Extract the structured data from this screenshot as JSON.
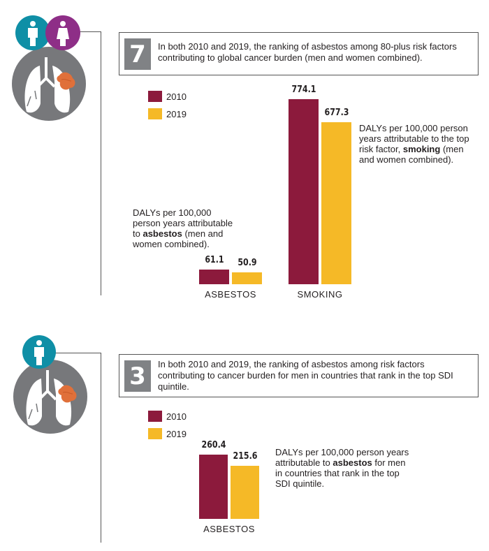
{
  "colors": {
    "y2010": "#8c1a3c",
    "y2019": "#f5b927",
    "rank_box": "#808285",
    "teal": "#0f8fa6",
    "purple": "#8e2e87",
    "lung_circle": "#77787b",
    "tumor": "#e0703a"
  },
  "icons": {
    "top": [
      "man-icon",
      "woman-icon",
      "lungs-icon"
    ],
    "bottom": [
      "man-icon",
      "lungs-icon"
    ]
  },
  "panel1": {
    "rank": "7",
    "callout": "In both 2010 and 2019, the ranking of asbestos among 80-plus risk factors contributing to global cancer burden (men and women combined).",
    "legend": [
      "2010",
      "2019"
    ],
    "note_asbestos": {
      "pre": "DALYs per 100,000 person years attributable to ",
      "bold": "asbestos",
      "post": " (men and women combined)."
    },
    "note_smoking": {
      "pre": "DALYs per 100,000 person years attributable to the top risk factor, ",
      "bold": "smoking",
      "post": " (men and women combined)."
    }
  },
  "panel2": {
    "rank": "3",
    "callout": "In both 2010 and 2019, the ranking of asbestos among risk factors contributing to cancer burden for men in countries that rank in the top SDI quintile.",
    "legend": [
      "2010",
      "2019"
    ],
    "note_asbestos": {
      "pre": "DALYs per 100,000 person years attributable to ",
      "bold": "asbestos",
      "post": " for men in countries that rank in the top SDI quintile."
    }
  },
  "chart_data": [
    {
      "type": "bar",
      "title": "DALYs per 100,000 person years (men and women combined)",
      "categories": [
        "ASBESTOS",
        "SMOKING"
      ],
      "series": [
        {
          "name": "2010",
          "values": [
            61.1,
            774.1
          ],
          "labels": [
            "61.1",
            "774.1"
          ]
        },
        {
          "name": "2019",
          "values": [
            50.9,
            677.3
          ],
          "labels": [
            "50.9",
            "677.3"
          ]
        }
      ],
      "xlabel": "",
      "ylabel": "",
      "ylim": [
        0,
        774.1
      ]
    },
    {
      "type": "bar",
      "title": "DALYs per 100,000 person years for men in top SDI quintile countries",
      "categories": [
        "ASBESTOS"
      ],
      "series": [
        {
          "name": "2010",
          "values": [
            260.4
          ],
          "labels": [
            "260.4"
          ]
        },
        {
          "name": "2019",
          "values": [
            215.6
          ],
          "labels": [
            "215.6"
          ]
        }
      ],
      "xlabel": "",
      "ylabel": "",
      "ylim": [
        0,
        260.4
      ]
    }
  ]
}
